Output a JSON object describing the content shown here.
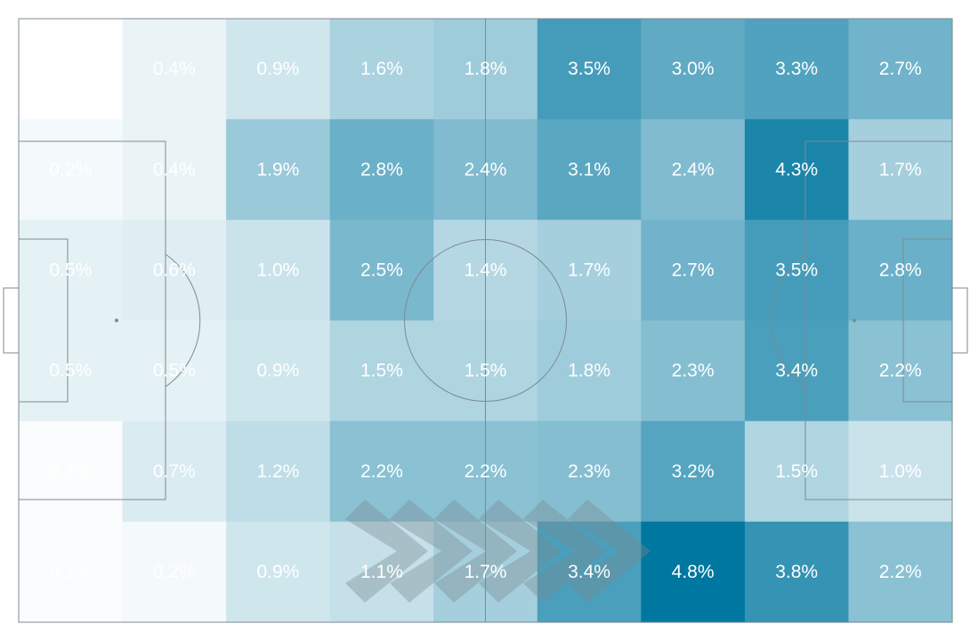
{
  "chart_data": {
    "type": "heatmap",
    "title": "",
    "rows": 6,
    "cols": 9,
    "unit": "%",
    "values": [
      [
        null,
        0.4,
        0.9,
        1.6,
        1.8,
        3.5,
        3.0,
        3.3,
        2.7
      ],
      [
        0.2,
        0.4,
        1.9,
        2.8,
        2.4,
        3.1,
        2.4,
        4.3,
        1.7
      ],
      [
        0.5,
        0.6,
        1.0,
        2.5,
        1.4,
        1.7,
        2.7,
        3.5,
        2.8
      ],
      [
        0.5,
        0.5,
        0.9,
        1.5,
        1.5,
        1.8,
        2.3,
        3.4,
        2.2
      ],
      [
        0.1,
        0.7,
        1.2,
        2.2,
        2.2,
        2.3,
        3.2,
        1.5,
        1.0
      ],
      [
        0.1,
        0.2,
        0.9,
        1.1,
        1.7,
        3.4,
        4.8,
        3.8,
        2.2
      ]
    ],
    "labels": [
      [
        "",
        "0.4%",
        "0.9%",
        "1.6%",
        "1.8%",
        "3.5%",
        "3.0%",
        "3.3%",
        "2.7%"
      ],
      [
        "0.2%",
        "0.4%",
        "1.9%",
        "2.8%",
        "2.4%",
        "3.1%",
        "2.4%",
        "4.3%",
        "1.7%"
      ],
      [
        "0.5%",
        "0.6%",
        "1.0%",
        "2.5%",
        "1.4%",
        "1.7%",
        "2.7%",
        "3.5%",
        "2.8%"
      ],
      [
        "0.5%",
        "0.5%",
        "0.9%",
        "1.5%",
        "1.5%",
        "1.8%",
        "2.3%",
        "3.4%",
        "2.2%"
      ],
      [
        "0.1%",
        "0.7%",
        "1.2%",
        "2.2%",
        "2.2%",
        "2.3%",
        "3.2%",
        "1.5%",
        "1.0%"
      ],
      [
        "0.1%",
        "0.2%",
        "0.9%",
        "1.1%",
        "1.7%",
        "3.4%",
        "4.8%",
        "3.8%",
        "2.2%"
      ]
    ],
    "color_scale": {
      "low": "#ffffff",
      "high": "#0077a0",
      "vmax": 4.8
    },
    "background": "soccer pitch",
    "direction_of_play": "right"
  },
  "colors": {
    "pitch_line": "#7d8a90",
    "arrow": "#7a8a92",
    "label": "#ffffff"
  }
}
